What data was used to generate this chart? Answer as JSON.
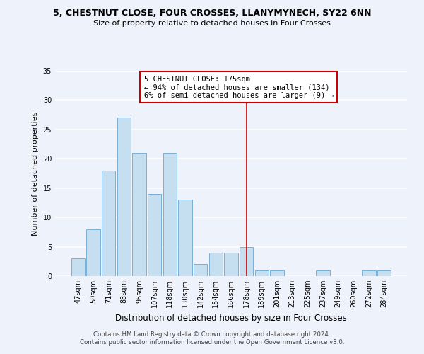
{
  "title": "5, CHESTNUT CLOSE, FOUR CROSSES, LLANYMYNECH, SY22 6NN",
  "subtitle": "Size of property relative to detached houses in Four Crosses",
  "xlabel": "Distribution of detached houses by size in Four Crosses",
  "ylabel": "Number of detached properties",
  "bar_labels": [
    "47sqm",
    "59sqm",
    "71sqm",
    "83sqm",
    "95sqm",
    "107sqm",
    "118sqm",
    "130sqm",
    "142sqm",
    "154sqm",
    "166sqm",
    "178sqm",
    "189sqm",
    "201sqm",
    "213sqm",
    "225sqm",
    "237sqm",
    "249sqm",
    "260sqm",
    "272sqm",
    "284sqm"
  ],
  "bar_values": [
    3,
    8,
    18,
    27,
    21,
    14,
    21,
    13,
    2,
    4,
    4,
    5,
    1,
    1,
    0,
    0,
    1,
    0,
    0,
    1,
    1
  ],
  "bar_color": "#c5dff0",
  "bar_edge_color": "#7bafd4",
  "background_color": "#eef2fb",
  "grid_color": "#ffffff",
  "reference_line_x_label": "178sqm",
  "reference_line_color": "#cc0000",
  "annotation_title": "5 CHESTNUT CLOSE: 175sqm",
  "annotation_line1": "← 94% of detached houses are smaller (134)",
  "annotation_line2": "6% of semi-detached houses are larger (9) →",
  "annotation_box_color": "#ffffff",
  "annotation_box_edge_color": "#cc0000",
  "ylim": [
    0,
    35
  ],
  "yticks": [
    0,
    5,
    10,
    15,
    20,
    25,
    30,
    35
  ],
  "footer_line1": "Contains HM Land Registry data © Crown copyright and database right 2024.",
  "footer_line2": "Contains public sector information licensed under the Open Government Licence v3.0."
}
